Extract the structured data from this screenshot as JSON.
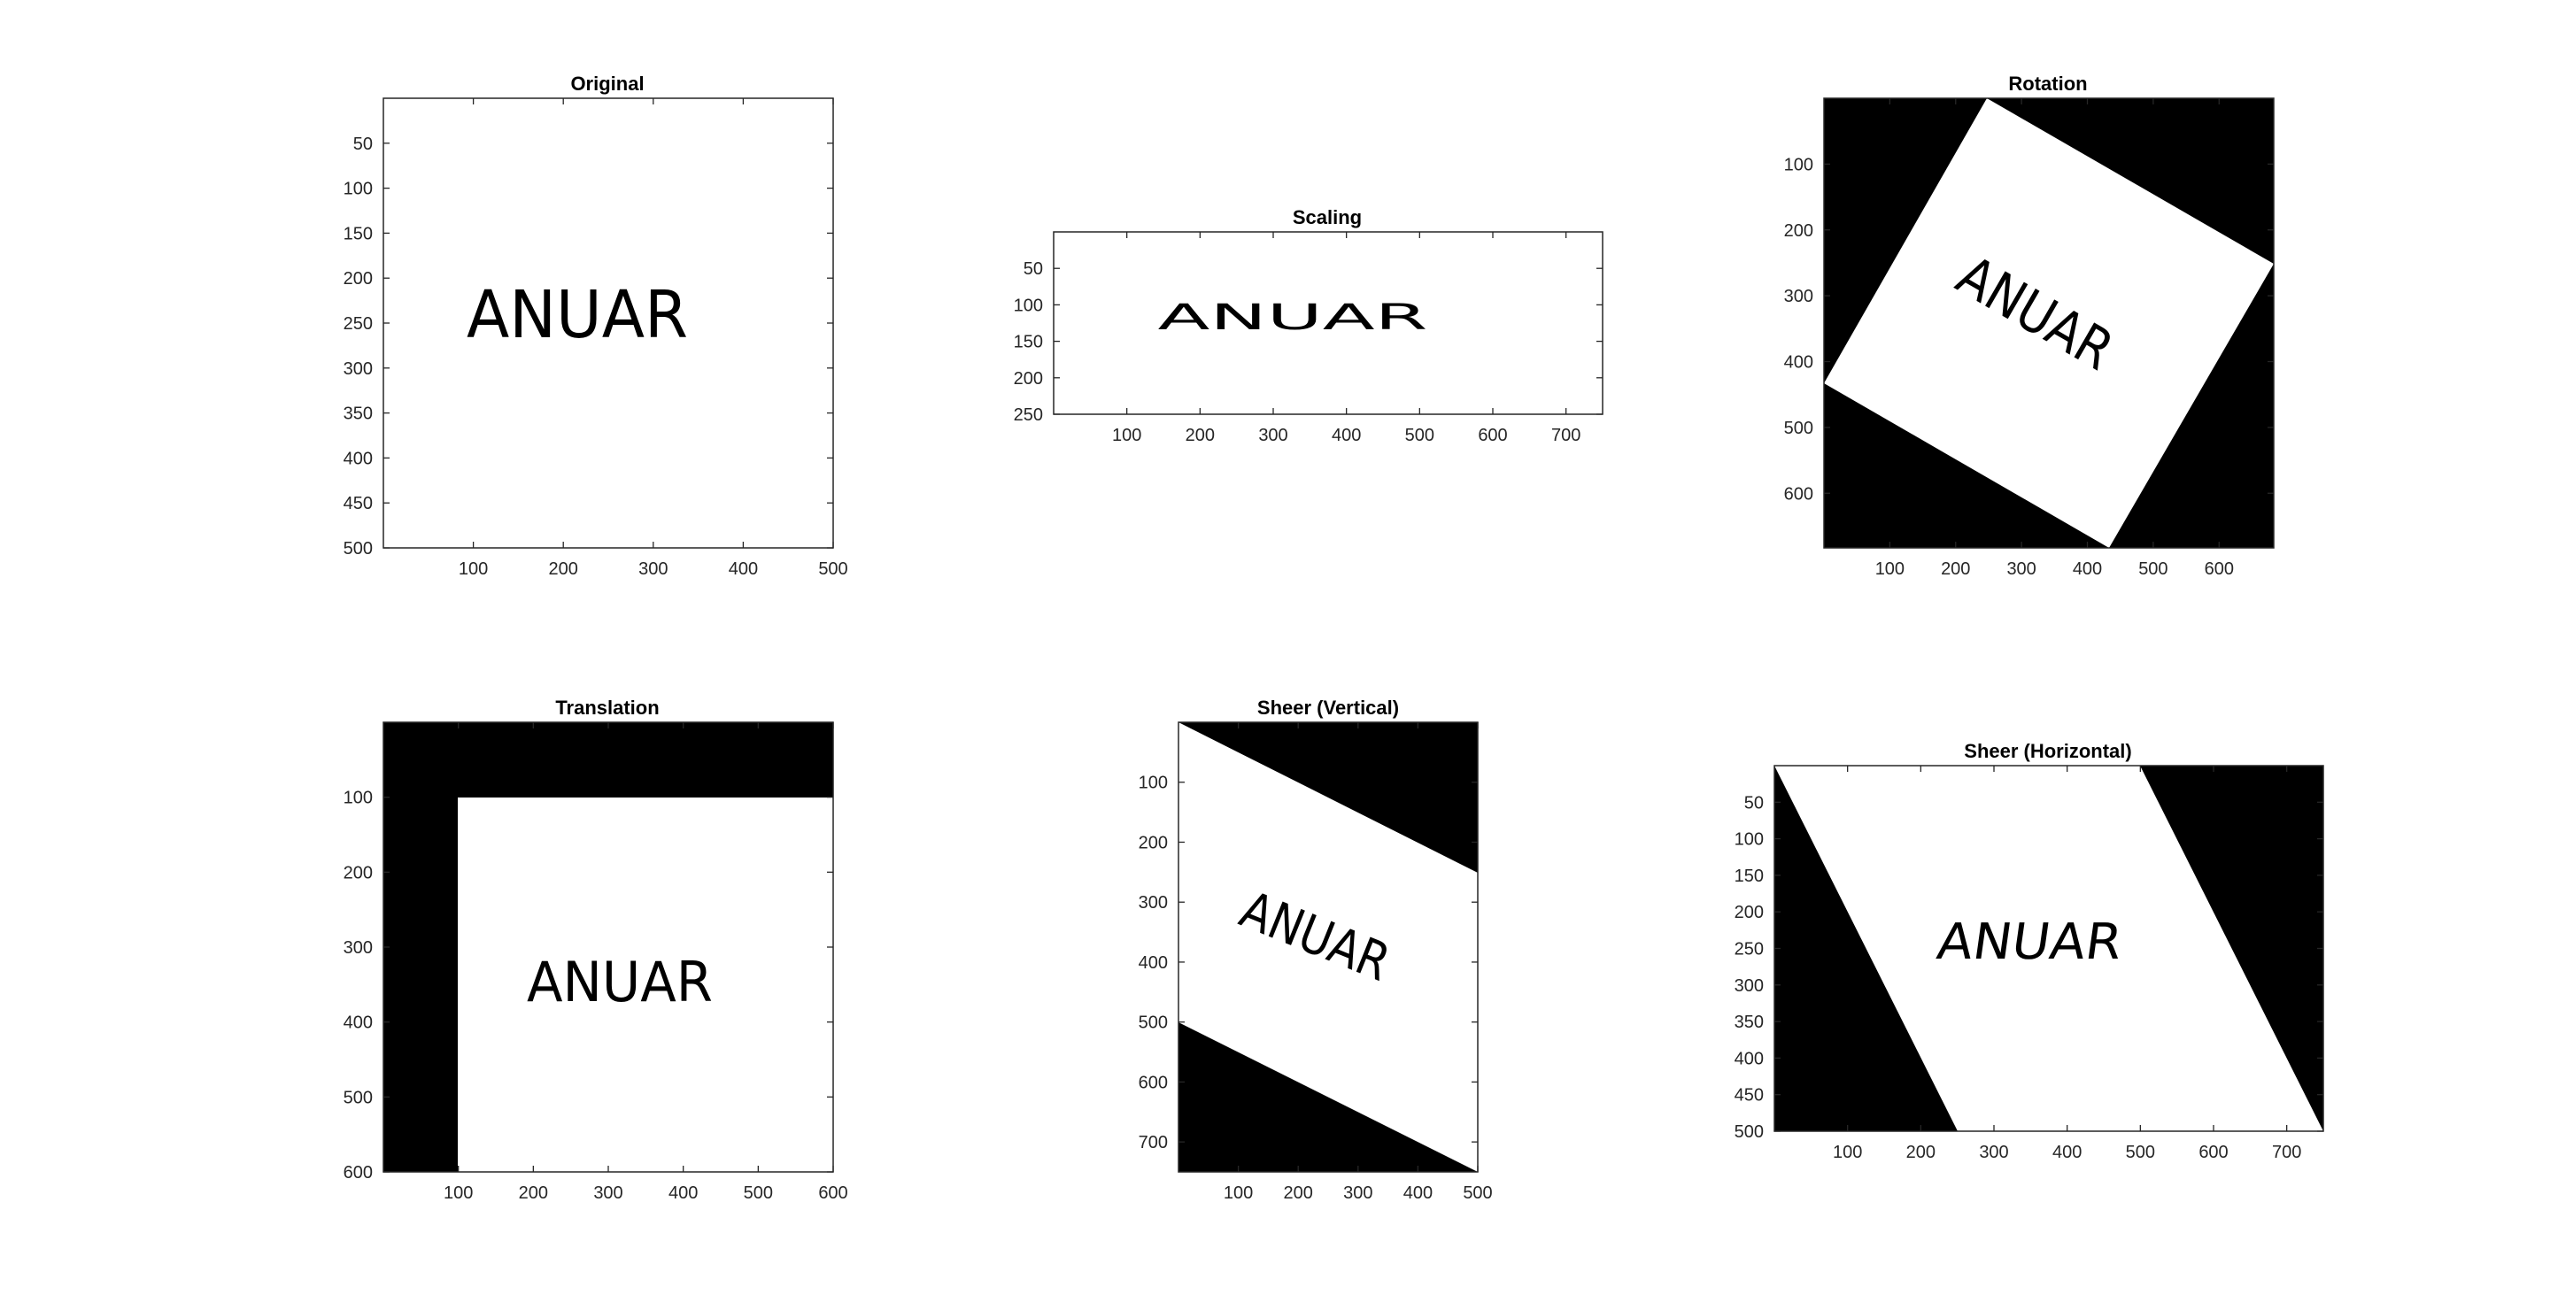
{
  "chart_data": [
    {
      "type": "image",
      "title": "Original",
      "xlim": [
        0,
        500
      ],
      "ylim": [
        0,
        500
      ],
      "xticks": [
        100,
        200,
        300,
        400,
        500
      ],
      "yticks": [
        50,
        100,
        150,
        200,
        250,
        300,
        350,
        400,
        450,
        500
      ],
      "image_text": "ANUAR",
      "background": "white"
    },
    {
      "type": "image",
      "title": "Scaling",
      "xlim": [
        0,
        750
      ],
      "ylim": [
        0,
        250
      ],
      "xticks": [
        100,
        200,
        300,
        400,
        500,
        600,
        700
      ],
      "yticks": [
        50,
        100,
        150,
        200,
        250
      ],
      "image_text": "ANUAR",
      "background": "white"
    },
    {
      "type": "image",
      "title": "Rotation",
      "xlim": [
        0,
        683
      ],
      "ylim": [
        0,
        683
      ],
      "xticks": [
        100,
        200,
        300,
        400,
        500,
        600
      ],
      "yticks": [
        100,
        200,
        300,
        400,
        500,
        600
      ],
      "image_text": "ANUAR",
      "rotation_deg": 30,
      "background": "black"
    },
    {
      "type": "image",
      "title": "Translation",
      "xlim": [
        0,
        600
      ],
      "ylim": [
        0,
        600
      ],
      "xticks": [
        100,
        200,
        300,
        400,
        500,
        600
      ],
      "yticks": [
        100,
        200,
        300,
        400,
        500,
        600
      ],
      "image_text": "ANUAR",
      "offset": [
        100,
        100
      ],
      "background": "black"
    },
    {
      "type": "image",
      "title": "Sheer (Vertical)",
      "xlim": [
        0,
        500
      ],
      "ylim": [
        0,
        750
      ],
      "xticks": [
        100,
        200,
        300,
        400,
        500
      ],
      "yticks": [
        100,
        200,
        300,
        400,
        500,
        600,
        700
      ],
      "image_text": "ANUAR",
      "shear": 0.5,
      "background": "black"
    },
    {
      "type": "image",
      "title": "Sheer (Horizontal)",
      "xlim": [
        0,
        750
      ],
      "ylim": [
        0,
        500
      ],
      "xticks": [
        100,
        200,
        300,
        400,
        500,
        600,
        700
      ],
      "yticks": [
        50,
        100,
        150,
        200,
        250,
        300,
        350,
        400,
        450,
        500
      ],
      "image_text": "ANUAR",
      "shear": 0.5,
      "background": "black"
    }
  ]
}
